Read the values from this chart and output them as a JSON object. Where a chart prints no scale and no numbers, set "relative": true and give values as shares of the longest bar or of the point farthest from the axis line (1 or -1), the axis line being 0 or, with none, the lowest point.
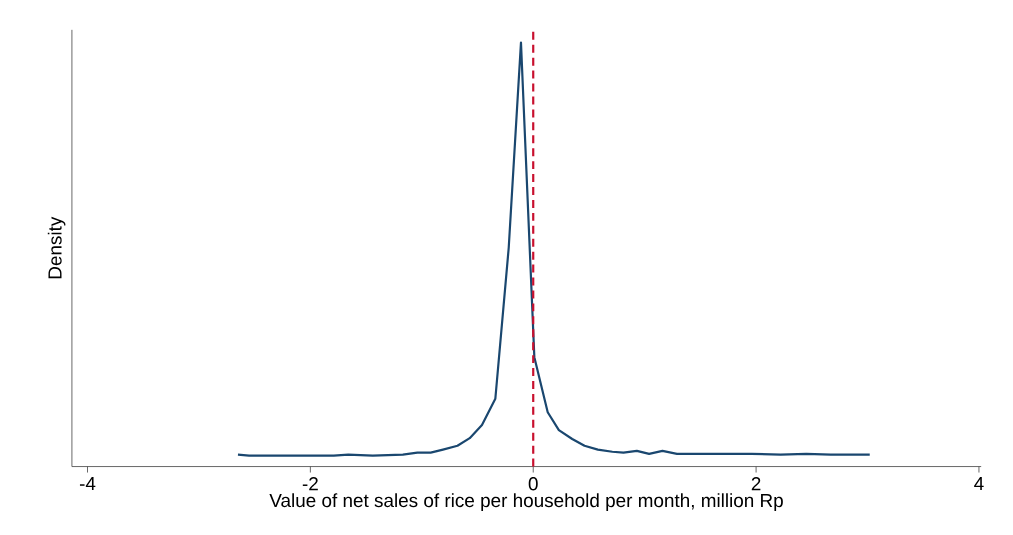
{
  "chart_data": {
    "type": "line",
    "xlabel": "Value of net sales of rice per household per month, million Rp",
    "ylabel": "Density",
    "relative": true,
    "x": [
      -2.65,
      -2.55,
      -1.79,
      -1.66,
      -1.44,
      -1.17,
      -1.04,
      -0.92,
      -0.81,
      -0.68,
      -0.57,
      -0.46,
      -0.34,
      -0.22,
      -0.11,
      0.01,
      0.13,
      0.23,
      0.35,
      0.46,
      0.58,
      0.71,
      0.81,
      0.93,
      1.04,
      1.16,
      1.29,
      1.51,
      1.96,
      2.22,
      2.45,
      2.67,
      3.02
    ],
    "values": [
      0.028,
      0.026,
      0.026,
      0.028,
      0.026,
      0.028,
      0.033,
      0.033,
      0.04,
      0.049,
      0.067,
      0.098,
      0.16,
      0.516,
      1,
      0.258,
      0.128,
      0.086,
      0.065,
      0.049,
      0.04,
      0.035,
      0.033,
      0.037,
      0.03,
      0.037,
      0.03,
      0.03,
      0.03,
      0.028,
      0.03,
      0.028,
      0.028
    ],
    "color": "#1a476f",
    "xlim": [
      -4.14,
      4.02
    ],
    "xticks": [
      -4,
      -2,
      0,
      2,
      4
    ],
    "ref_lines": [
      {
        "axis": "x",
        "value": 0,
        "color": "#c8102e",
        "line_style": "dashed"
      }
    ]
  }
}
